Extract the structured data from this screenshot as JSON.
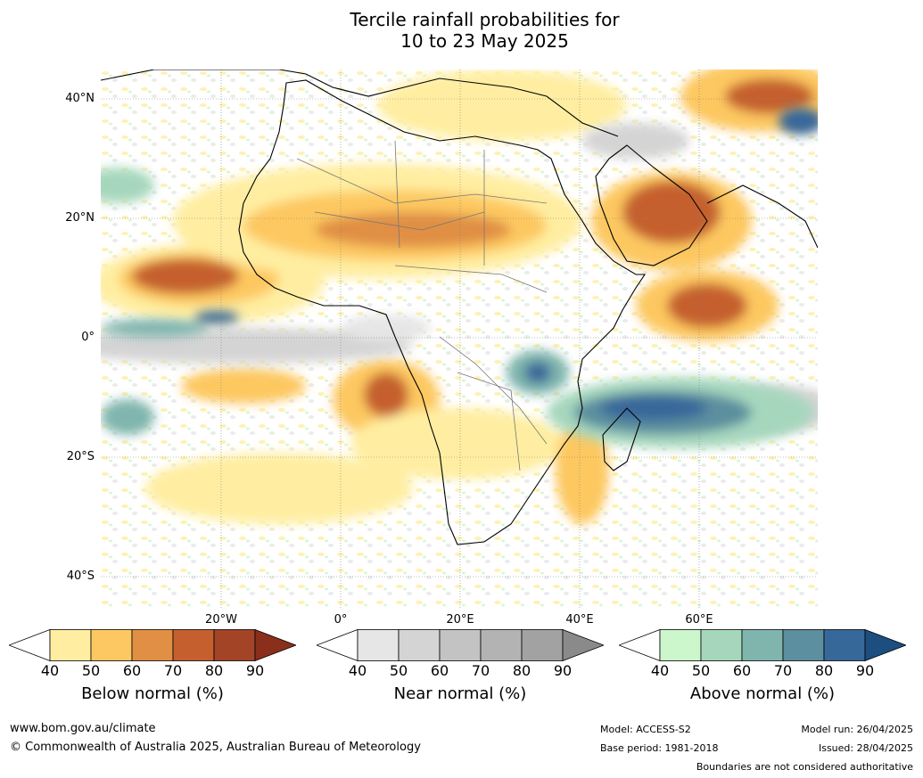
{
  "title": {
    "line1": "Tercile rainfall probabilities for",
    "line2": "10 to 23 May 2025"
  },
  "map": {
    "lat_labels": [
      "40°N",
      "20°N",
      "0°",
      "20°S",
      "40°S"
    ],
    "lon_labels": [
      "20°W",
      "0°",
      "20°E",
      "40°E",
      "60°E"
    ]
  },
  "colorbars": [
    {
      "name": "below",
      "title": "Below normal (%)",
      "ticks": [
        "40",
        "50",
        "60",
        "70",
        "80",
        "90"
      ],
      "colors": [
        "#ffeea1",
        "#fdc861",
        "#e08f45",
        "#c5602e",
        "#a44427",
        "#8a2f1c"
      ]
    },
    {
      "name": "near",
      "title": "Near normal (%)",
      "ticks": [
        "40",
        "50",
        "60",
        "70",
        "80",
        "90"
      ],
      "colors": [
        "#e6e6e6",
        "#d4d4d4",
        "#c3c3c3",
        "#b3b3b3",
        "#a2a2a2",
        "#8a8a8a"
      ]
    },
    {
      "name": "above",
      "title": "Above normal (%)",
      "ticks": [
        "40",
        "50",
        "60",
        "70",
        "80",
        "90"
      ],
      "colors": [
        "#ccf6cc",
        "#a6d7bd",
        "#7fb5ad",
        "#5c8f9f",
        "#37689a",
        "#1c4e80"
      ]
    }
  ],
  "footer": {
    "website": "www.bom.gov.au/climate",
    "copyright": "© Commonwealth of Australia 2025, Australian Bureau of Meteorology",
    "model": "Model: ACCESS-S2",
    "base_period": "Base period: 1981-2018",
    "model_run": "Model run: 26/04/2025",
    "issued": "Issued: 28/04/2025",
    "disclaimer": "Boundaries are not considered authoritative"
  }
}
